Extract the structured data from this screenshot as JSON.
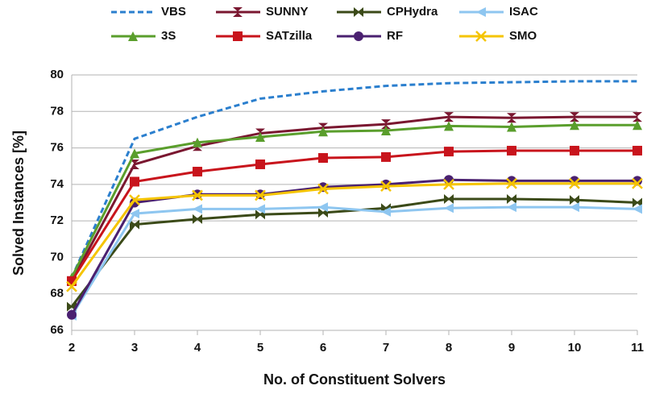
{
  "chart_data": {
    "type": "line",
    "xlabel": "No. of Constituent Solvers",
    "ylabel": "Solved Instances [%]",
    "x": [
      2,
      3,
      4,
      5,
      6,
      7,
      8,
      9,
      10,
      11
    ],
    "xlim": [
      2,
      11
    ],
    "xticks": [
      2,
      3,
      4,
      5,
      6,
      7,
      8,
      9,
      10,
      11
    ],
    "ylim": [
      66,
      80
    ],
    "yticks": [
      66,
      68,
      70,
      72,
      74,
      76,
      78,
      80
    ],
    "grid": true,
    "legend": "top",
    "series": [
      {
        "name": "VBS",
        "color": "#2b7fce",
        "dash": true,
        "marker": "none",
        "values": [
          68.9,
          76.5,
          77.7,
          78.7,
          79.1,
          79.4,
          79.55,
          79.6,
          79.65,
          79.65
        ]
      },
      {
        "name": "SUNNY",
        "color": "#7a1730",
        "marker": "hourglass",
        "values": [
          68.7,
          75.1,
          76.1,
          76.8,
          77.1,
          77.3,
          77.7,
          77.65,
          77.7,
          77.7
        ]
      },
      {
        "name": "CPHydra",
        "color": "#3b4a18",
        "marker": "bowtie",
        "values": [
          67.3,
          71.8,
          72.1,
          72.35,
          72.45,
          72.7,
          73.2,
          73.2,
          73.15,
          73.0
        ]
      },
      {
        "name": "ISAC",
        "color": "#8ec6f0",
        "marker": "triangle-left",
        "values": [
          66.8,
          72.4,
          72.65,
          72.65,
          72.75,
          72.5,
          72.7,
          72.75,
          72.75,
          72.65
        ]
      },
      {
        "name": "3S",
        "color": "#5a9e2c",
        "marker": "triangle",
        "values": [
          68.9,
          75.7,
          76.3,
          76.6,
          76.9,
          76.95,
          77.2,
          77.15,
          77.25,
          77.25
        ]
      },
      {
        "name": "SATzilla",
        "color": "#c8141c",
        "marker": "square",
        "values": [
          68.7,
          74.15,
          74.7,
          75.1,
          75.45,
          75.5,
          75.8,
          75.85,
          75.85,
          75.85
        ]
      },
      {
        "name": "RF",
        "color": "#4a2070",
        "marker": "circle",
        "values": [
          66.85,
          73.0,
          73.45,
          73.45,
          73.85,
          74.0,
          74.25,
          74.2,
          74.2,
          74.2
        ]
      },
      {
        "name": "SMO",
        "color": "#f5c400",
        "marker": "x",
        "values": [
          68.4,
          73.15,
          73.4,
          73.4,
          73.75,
          73.9,
          74.0,
          74.05,
          74.05,
          74.05
        ]
      }
    ]
  }
}
